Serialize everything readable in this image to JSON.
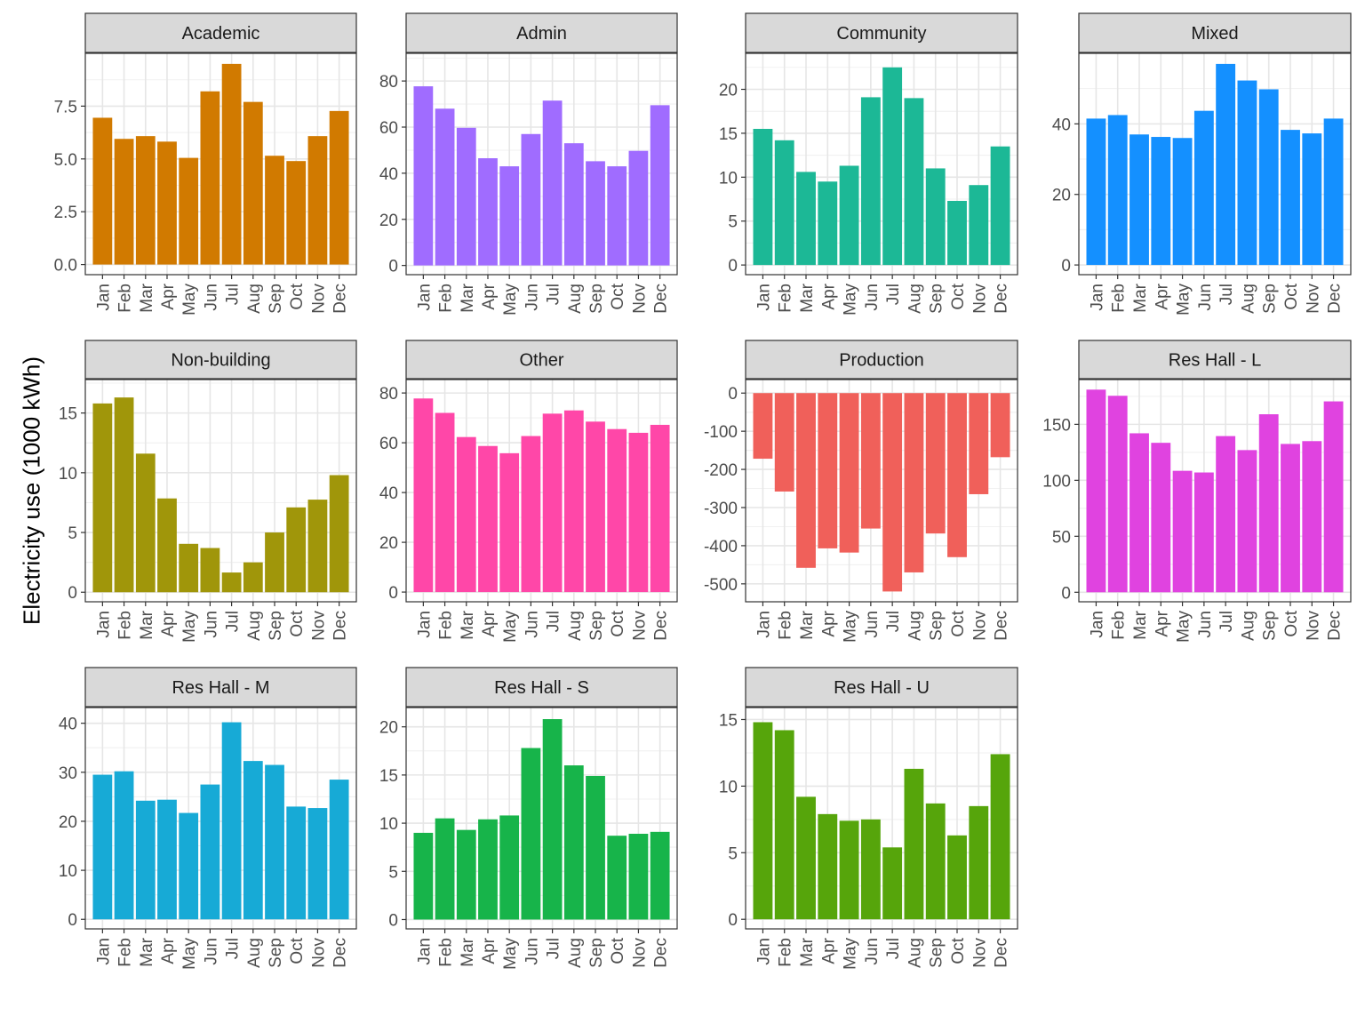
{
  "chart_data": {
    "type": "bar",
    "layout": "facet_wrap",
    "ylabel": "Electricity use (1000 kWh)",
    "xlabel": "",
    "categories": [
      "Jan",
      "Feb",
      "Mar",
      "Apr",
      "May",
      "Jun",
      "Jul",
      "Aug",
      "Sep",
      "Oct",
      "Nov",
      "Dec"
    ],
    "facets": [
      {
        "name": "Academic",
        "color": "#D17A00",
        "ylim": [
          -0.48,
          10.0
        ],
        "ticks": [
          0.0,
          2.5,
          5.0,
          7.5
        ],
        "tick_labels": [
          "0.0",
          "2.5",
          "5.0",
          "7.5"
        ],
        "values": [
          6.95,
          5.95,
          6.08,
          5.82,
          5.05,
          8.2,
          9.5,
          7.7,
          5.15,
          4.9,
          6.08,
          7.27
        ]
      },
      {
        "name": "Admin",
        "color": "#A06CFF",
        "ylim": [
          -4.0,
          92.0
        ],
        "ticks": [
          0,
          20,
          40,
          60,
          80
        ],
        "tick_labels": [
          "0",
          "20",
          "40",
          "60",
          "80"
        ],
        "values": [
          77.7,
          68.0,
          59.7,
          46.5,
          43.0,
          57.0,
          71.5,
          53.0,
          45.2,
          43.0,
          49.7,
          69.5
        ]
      },
      {
        "name": "Community",
        "color": "#1CB896",
        "ylim": [
          -1.1,
          24.1
        ],
        "ticks": [
          0,
          5,
          10,
          15,
          20
        ],
        "tick_labels": [
          "0",
          "5",
          "10",
          "15",
          "20"
        ],
        "values": [
          15.5,
          14.2,
          10.6,
          9.5,
          11.3,
          19.1,
          22.5,
          19.0,
          11.0,
          7.3,
          9.1,
          13.5
        ]
      },
      {
        "name": "Mixed",
        "color": "#1490FF",
        "ylim": [
          -2.75,
          60.0
        ],
        "ticks": [
          0,
          20,
          40
        ],
        "tick_labels": [
          "0",
          "20",
          "40"
        ],
        "values": [
          41.5,
          42.5,
          37.0,
          36.3,
          36.0,
          43.7,
          57.0,
          52.3,
          49.8,
          38.3,
          37.3,
          41.5
        ]
      },
      {
        "name": "Non-building",
        "color": "#A0960A",
        "ylim": [
          -0.8,
          17.8
        ],
        "ticks": [
          0,
          5,
          10,
          15
        ],
        "tick_labels": [
          "0",
          "5",
          "10",
          "15"
        ],
        "values": [
          15.8,
          16.3,
          11.6,
          7.85,
          4.05,
          3.7,
          1.65,
          2.5,
          5.0,
          7.1,
          7.75,
          9.8
        ]
      },
      {
        "name": "Other",
        "color": "#FF47A8",
        "ylim": [
          -3.9,
          85.4
        ],
        "ticks": [
          0,
          20,
          40,
          60,
          80
        ],
        "tick_labels": [
          "0",
          "20",
          "40",
          "60",
          "80"
        ],
        "values": [
          77.8,
          72.0,
          62.3,
          58.7,
          55.8,
          62.7,
          71.7,
          73.0,
          68.5,
          65.5,
          64.0,
          67.2
        ]
      },
      {
        "name": "Production",
        "color": "#F0605A",
        "ylim": [
          -547.0,
          35.5
        ],
        "ticks": [
          -500,
          -400,
          -300,
          -200,
          -100,
          0
        ],
        "tick_labels": [
          "-500",
          "-400",
          "-300",
          "-200",
          "-100",
          "0"
        ],
        "values": [
          -172,
          -258,
          -458,
          -407,
          -418,
          -355,
          -520,
          -470,
          -368,
          -430,
          -265,
          -168
        ]
      },
      {
        "name": "Res Hall - L",
        "color": "#E043E0",
        "ylim": [
          -8.5,
          190.0
        ],
        "ticks": [
          0,
          50,
          100,
          150
        ],
        "tick_labels": [
          "0",
          "50",
          "100",
          "150"
        ],
        "values": [
          181.0,
          175.5,
          142.0,
          133.5,
          108.5,
          107.0,
          139.5,
          127.0,
          159.0,
          132.5,
          135.0,
          170.5
        ]
      },
      {
        "name": "Res Hall - M",
        "color": "#17AAD6",
        "ylim": [
          -1.95,
          43.2
        ],
        "ticks": [
          0,
          10,
          20,
          30,
          40
        ],
        "tick_labels": [
          "0",
          "10",
          "20",
          "30",
          "40"
        ],
        "values": [
          29.5,
          30.2,
          24.2,
          24.4,
          21.7,
          27.5,
          40.2,
          32.3,
          31.5,
          23.0,
          22.7,
          28.5
        ]
      },
      {
        "name": "Res Hall - S",
        "color": "#17B44A",
        "ylim": [
          -0.97,
          22.0
        ],
        "ticks": [
          0,
          5,
          10,
          15,
          20
        ],
        "tick_labels": [
          "0",
          "5",
          "10",
          "15",
          "20"
        ],
        "values": [
          9.0,
          10.5,
          9.3,
          10.4,
          10.8,
          17.8,
          20.8,
          16.0,
          14.9,
          8.7,
          8.9,
          9.1
        ]
      },
      {
        "name": "Res Hall - U",
        "color": "#56A50B",
        "ylim": [
          -0.72,
          15.9
        ],
        "ticks": [
          0,
          5,
          10,
          15
        ],
        "tick_labels": [
          "0",
          "5",
          "10",
          "15"
        ],
        "values": [
          14.8,
          14.2,
          9.2,
          7.9,
          7.4,
          7.5,
          5.4,
          11.3,
          8.7,
          6.3,
          8.5,
          12.4
        ]
      }
    ]
  }
}
